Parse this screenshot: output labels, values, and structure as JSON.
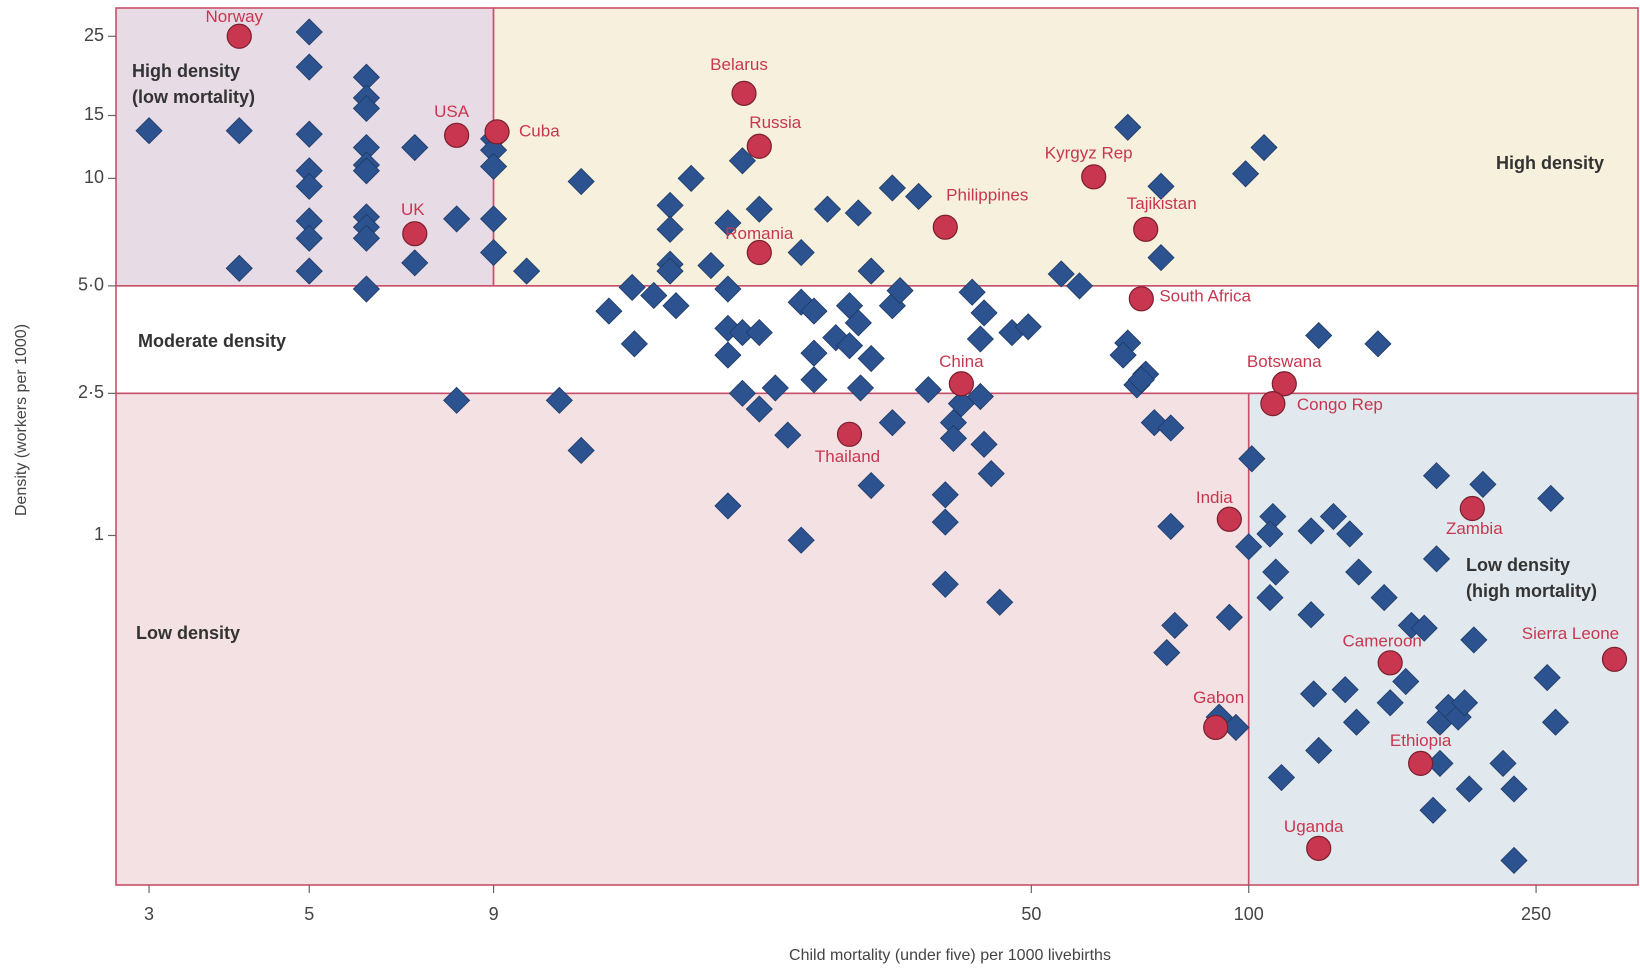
{
  "chart_data": {
    "type": "scatter",
    "x_label": "Child mortality (under five) per 1000 livebirths",
    "y_label": "Density (workers per 1000)",
    "log_x": true,
    "log_y": true,
    "xlim": [
      2.7,
      346
    ],
    "ylim": [
      0.105,
      30
    ],
    "xticks": [
      3,
      5,
      9,
      50,
      100,
      250
    ],
    "yticks": [
      25,
      15,
      10,
      {
        "value": 5,
        "label": "5·0"
      },
      {
        "value": 2.5,
        "label": "2·5"
      },
      1
    ],
    "border_color": "#c9506a",
    "regions": [
      {
        "label": [
          "High density",
          "(low mortality)"
        ],
        "xrange": [
          2.7,
          9
        ],
        "yrange": [
          5,
          30
        ],
        "color": "#e7dbe6"
      },
      {
        "label": [
          "High density"
        ],
        "xrange": [
          9,
          346
        ],
        "yrange": [
          5,
          30
        ],
        "color": "#f6f0dc"
      },
      {
        "label": [
          "Moderate density"
        ],
        "xrange": [
          2.7,
          346
        ],
        "yrange": [
          2.5,
          5
        ],
        "color": "#ffffff"
      },
      {
        "label": [
          "Low density"
        ],
        "xrange": [
          2.7,
          100
        ],
        "yrange": [
          0.105,
          2.5
        ],
        "color": "#f3e1e3"
      },
      {
        "label": [
          "Low density",
          "(high mortality)"
        ],
        "xrange": [
          100,
          346
        ],
        "yrange": [
          0.105,
          2.5
        ],
        "color": "#e1e9ee"
      }
    ],
    "series": [
      {
        "marker": "diamond",
        "color": "#2c5390",
        "x": [
          3,
          4.0,
          4.0,
          5.0,
          5.0,
          5.0,
          5.0,
          5.0,
          5.0,
          5.0,
          5.0,
          6.0,
          6.0,
          6.0,
          6.0,
          6.0,
          6.0,
          6.0,
          6.0,
          6.0,
          6.0,
          7.0,
          7.0,
          8.0,
          9.0,
          9.0,
          9.0,
          9.0,
          9.0,
          10.0,
          11.9,
          8.0,
          11.1,
          11.9,
          13,
          14,
          14.1,
          15.0,
          15.8,
          15.8,
          15.8,
          15.8,
          16.1,
          16.9,
          18.0,
          19.0,
          19.0,
          19.0,
          19.0,
          19.0,
          19.9,
          19.9,
          19.9,
          21,
          21,
          21,
          22.1,
          23,
          24,
          24,
          24,
          25,
          25,
          25,
          26.1,
          26.8,
          28,
          28,
          28.8,
          28.8,
          29,
          30,
          30,
          30,
          32.1,
          32.1,
          32.1,
          32.9,
          34.9,
          36.0,
          38,
          38,
          38,
          39,
          39,
          40,
          41.4,
          42.5,
          42.5,
          43,
          43,
          44,
          45.2,
          47,
          49.5,
          55,
          58.3,
          68,
          68,
          67,
          70,
          72,
          71,
          75.6,
          75.6,
          74,
          78,
          78,
          79,
          77,
          91,
          96,
          94,
          99,
          105,
          101,
          100,
          108,
          107,
          109,
          107,
          122,
          122,
          123,
          125,
          111,
          125,
          131,
          138,
          136,
          141,
          142,
          151,
          154,
          157,
          165,
          168,
          175,
          182,
          182,
          184,
          180,
          184,
          189,
          195,
          199,
          205,
          202,
          211,
          225,
          233,
          233,
          259,
          262,
          266
        ],
        "y": [
          13.6,
          13.6,
          5.6,
          25.7,
          20.5,
          13.3,
          10.5,
          9.5,
          7.6,
          6.8,
          5.5,
          19.2,
          16.8,
          15.7,
          12.2,
          10.9,
          10.5,
          7.8,
          7.3,
          6.8,
          4.9,
          12.2,
          5.8,
          7.7,
          12.9,
          12.0,
          10.8,
          7.7,
          6.2,
          5.5,
          9.8,
          2.39,
          2.39,
          1.73,
          4.25,
          4.95,
          3.44,
          4.7,
          8.4,
          7.2,
          5.75,
          5.5,
          4.4,
          10,
          5.7,
          7.5,
          4.9,
          3.8,
          3.2,
          1.21,
          11.2,
          3.7,
          2.5,
          8.2,
          3.7,
          2.26,
          2.59,
          1.91,
          6.2,
          4.5,
          0.97,
          4.25,
          3.24,
          2.73,
          8.2,
          3.58,
          4.4,
          3.4,
          8.0,
          3.94,
          2.59,
          5.5,
          3.13,
          1.38,
          9.4,
          4.4,
          2.07,
          4.85,
          8.9,
          2.56,
          1.3,
          1.09,
          0.73,
          2.07,
          1.87,
          2.34,
          4.8,
          2.45,
          3.55,
          4.2,
          1.8,
          1.49,
          0.65,
          3.7,
          3.84,
          5.4,
          5.0,
          13.9,
          3.46,
          3.2,
          2.64,
          2.83,
          2.73,
          9.5,
          6.0,
          2.07,
          2.0,
          1.06,
          0.56,
          0.47,
          0.31,
          0.29,
          0.59,
          10.3,
          12.2,
          1.64,
          0.93,
          1.13,
          1.01,
          0.79,
          0.67,
          1.03,
          0.6,
          0.36,
          0.25,
          0.21,
          3.63,
          1.13,
          1.01,
          0.37,
          0.3,
          0.79,
          3.44,
          0.67,
          0.34,
          0.39,
          0.56,
          0.55,
          1.47,
          0.86,
          0.23,
          0.17,
          0.3,
          0.33,
          0.31,
          0.34,
          0.51,
          0.195,
          1.39,
          0.23,
          0.195,
          0.123,
          0.4,
          1.27,
          0.3
        ]
      },
      {
        "marker": "circle",
        "color": "#c8374f",
        "labels": [
          "Norway",
          "USA",
          "Cuba",
          "UK",
          "Belarus",
          "Russia",
          "Romania",
          "Philippines",
          "Kyrgyz Rep",
          "Tajikistan",
          "South Africa",
          "China",
          "Botswana",
          "Congo Rep",
          "Thailand",
          "India",
          "Zambia",
          "Cameroon",
          "Sierra Leone",
          "Gabon",
          "Ethiopia",
          "Uganda"
        ],
        "x": [
          4.0,
          8.0,
          9.1,
          7.0,
          20,
          21,
          21,
          38,
          61,
          72,
          71,
          40,
          112,
          108,
          28,
          94,
          204,
          157,
          321,
          90,
          173,
          125
        ],
        "y": [
          25,
          13.2,
          13.5,
          7.0,
          17.3,
          12.3,
          6.2,
          7.3,
          10.1,
          7.2,
          4.6,
          2.66,
          2.66,
          2.34,
          1.92,
          1.11,
          1.19,
          0.44,
          0.45,
          0.29,
          0.23,
          0.133
        ]
      }
    ]
  }
}
